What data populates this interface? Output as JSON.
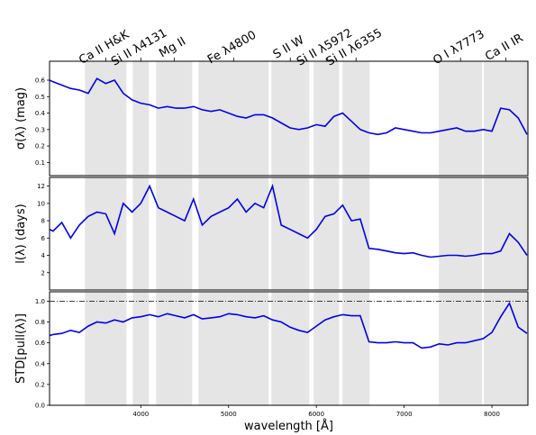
{
  "chart_data": [
    {
      "type": "line",
      "ylabel": "σ(λ) (mag)",
      "color": "#0000ee",
      "xlim": [
        2960,
        8410
      ],
      "ylim": [
        0.02,
        0.715
      ],
      "yticks": [
        0.1,
        0.2,
        0.3,
        0.4,
        0.5,
        0.6
      ],
      "bands": [
        [
          3364,
          3836
        ],
        [
          3908,
          4092
        ],
        [
          4174,
          4585
        ],
        [
          4657,
          5457
        ],
        [
          5488,
          5919
        ],
        [
          5970,
          6257
        ],
        [
          6298,
          6606
        ],
        [
          7396,
          7888
        ],
        [
          7908,
          8410
        ]
      ],
      "top_ticks": [
        {
          "value": 3600,
          "label": "Ca II H&K"
        },
        {
          "value": 4000,
          "label": "Si II λ4131"
        },
        {
          "value": 4380,
          "label": "Mg II"
        },
        {
          "value": 5057,
          "label": "Fe λ4800"
        },
        {
          "value": 5703,
          "label": "S II W"
        },
        {
          "value": 6113,
          "label": "Si II λ5972"
        },
        {
          "value": 6452,
          "label": "Si II λ6355"
        },
        {
          "value": 7642,
          "label": "O I λ7773"
        },
        {
          "value": 8160,
          "label": "Ca II IR"
        }
      ],
      "x": [
        2960,
        3000,
        3100,
        3200,
        3300,
        3400,
        3500,
        3600,
        3700,
        3800,
        3900,
        4000,
        4100,
        4200,
        4300,
        4400,
        4500,
        4600,
        4700,
        4800,
        4900,
        5000,
        5100,
        5200,
        5300,
        5400,
        5500,
        5600,
        5700,
        5800,
        5900,
        6000,
        6100,
        6200,
        6300,
        6400,
        6500,
        6600,
        6700,
        6800,
        6900,
        7000,
        7100,
        7200,
        7300,
        7400,
        7500,
        7600,
        7700,
        7800,
        7900,
        8000,
        8100,
        8200,
        8300,
        8400
      ],
      "values": [
        0.6,
        0.59,
        0.57,
        0.55,
        0.54,
        0.52,
        0.61,
        0.58,
        0.6,
        0.52,
        0.48,
        0.46,
        0.45,
        0.43,
        0.44,
        0.43,
        0.43,
        0.44,
        0.42,
        0.41,
        0.42,
        0.4,
        0.38,
        0.37,
        0.39,
        0.39,
        0.37,
        0.34,
        0.31,
        0.3,
        0.31,
        0.33,
        0.32,
        0.38,
        0.4,
        0.35,
        0.3,
        0.28,
        0.27,
        0.28,
        0.31,
        0.3,
        0.29,
        0.28,
        0.28,
        0.29,
        0.3,
        0.31,
        0.29,
        0.29,
        0.3,
        0.29,
        0.43,
        0.42,
        0.37,
        0.27
      ]
    },
    {
      "type": "line",
      "ylabel": "l(λ) (days)",
      "color": "#0000ee",
      "xlim": [
        2960,
        8410
      ],
      "ylim": [
        0,
        13
      ],
      "yticks": [
        2,
        4,
        6,
        8,
        10,
        12
      ],
      "x": [
        2960,
        3000,
        3100,
        3200,
        3300,
        3400,
        3500,
        3600,
        3700,
        3800,
        3900,
        4000,
        4100,
        4200,
        4300,
        4400,
        4500,
        4600,
        4700,
        4800,
        4900,
        5000,
        5100,
        5200,
        5300,
        5400,
        5500,
        5600,
        5700,
        5800,
        5900,
        6000,
        6100,
        6200,
        6300,
        6400,
        6500,
        6600,
        6700,
        6800,
        6900,
        7000,
        7100,
        7200,
        7300,
        7400,
        7500,
        7600,
        7700,
        7800,
        7900,
        8000,
        8100,
        8200,
        8300,
        8400
      ],
      "values": [
        7.0,
        6.8,
        7.8,
        6.0,
        7.5,
        8.5,
        9.0,
        8.8,
        6.5,
        10.0,
        9.0,
        10.0,
        12.0,
        9.5,
        9.0,
        8.5,
        8.0,
        10.5,
        7.5,
        8.5,
        9.0,
        9.5,
        10.5,
        9.0,
        10.0,
        9.5,
        12.0,
        7.5,
        7.0,
        6.5,
        6.0,
        7.0,
        8.5,
        8.8,
        9.8,
        8.0,
        8.2,
        4.8,
        4.7,
        4.5,
        4.3,
        4.2,
        4.3,
        4.0,
        3.8,
        3.9,
        4.0,
        4.0,
        3.9,
        4.0,
        4.2,
        4.2,
        4.5,
        6.5,
        5.5,
        4.0
      ]
    },
    {
      "type": "line",
      "ylabel": "STD[pull(λ)]",
      "xlabel": "wavelength [Å]",
      "color": "#0000ee",
      "xlim": [
        2960,
        8410
      ],
      "ylim": [
        0,
        1.09
      ],
      "yticks": [
        {
          "value": 0,
          "label": "0.0"
        },
        0.2,
        0.4,
        0.6,
        0.8,
        {
          "value": 1,
          "label": "1.0"
        }
      ],
      "xticks": [
        4000,
        5000,
        6000,
        7000,
        8000
      ],
      "hline": 1,
      "x": [
        2960,
        3000,
        3100,
        3200,
        3300,
        3400,
        3500,
        3600,
        3700,
        3800,
        3900,
        4000,
        4100,
        4200,
        4300,
        4400,
        4500,
        4600,
        4700,
        4800,
        4900,
        5000,
        5100,
        5200,
        5300,
        5400,
        5500,
        5600,
        5700,
        5800,
        5900,
        6000,
        6100,
        6200,
        6300,
        6400,
        6500,
        6600,
        6700,
        6800,
        6900,
        7000,
        7100,
        7200,
        7300,
        7400,
        7500,
        7600,
        7700,
        7800,
        7900,
        8000,
        8100,
        8200,
        8300,
        8400
      ],
      "values": [
        0.67,
        0.68,
        0.69,
        0.72,
        0.7,
        0.76,
        0.8,
        0.79,
        0.82,
        0.8,
        0.84,
        0.85,
        0.87,
        0.85,
        0.88,
        0.86,
        0.84,
        0.87,
        0.83,
        0.84,
        0.85,
        0.88,
        0.87,
        0.85,
        0.84,
        0.86,
        0.82,
        0.8,
        0.75,
        0.72,
        0.7,
        0.76,
        0.82,
        0.85,
        0.87,
        0.86,
        0.86,
        0.61,
        0.6,
        0.6,
        0.61,
        0.6,
        0.6,
        0.55,
        0.56,
        0.59,
        0.58,
        0.6,
        0.6,
        0.62,
        0.64,
        0.7,
        0.85,
        0.98,
        0.75,
        0.69
      ]
    }
  ]
}
